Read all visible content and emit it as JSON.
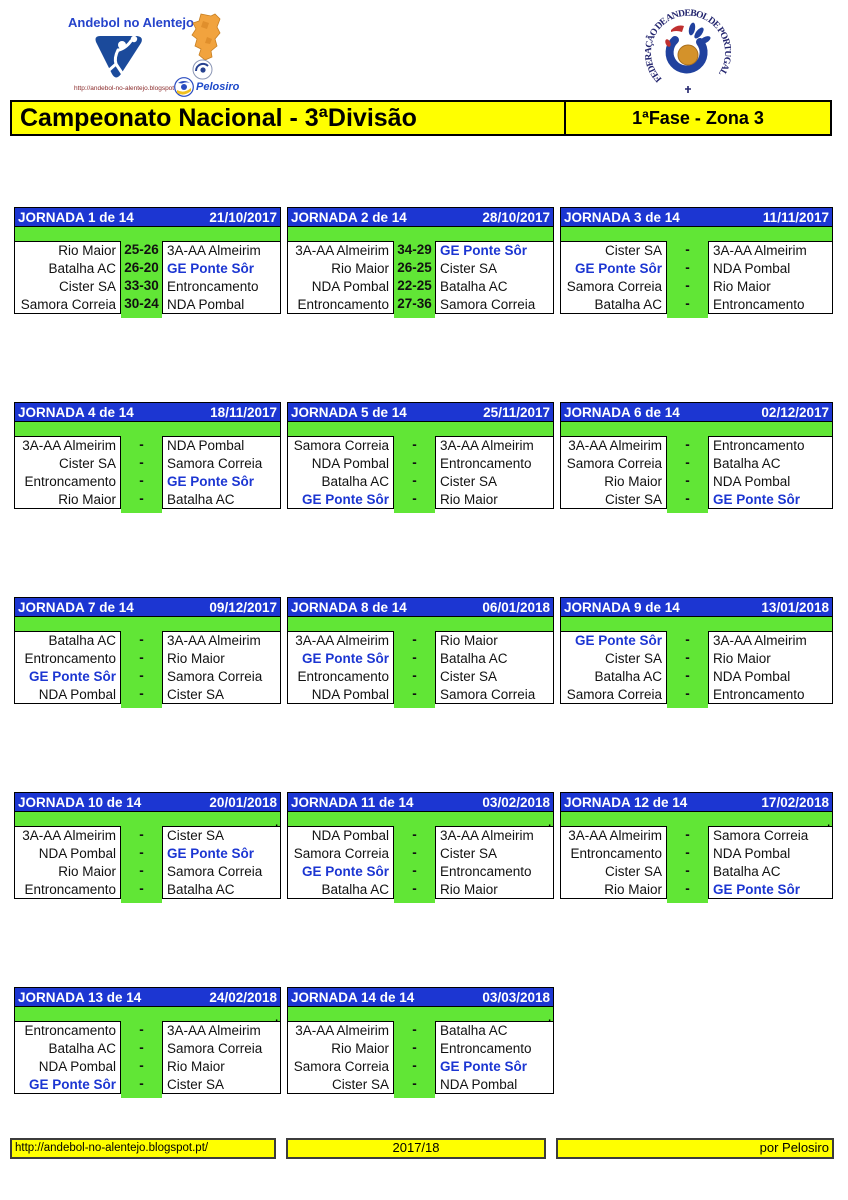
{
  "branding": {
    "site_title": "Andebol no Alentejo",
    "site_url_small": "http://andebol-no-alentejo.blogspot.pt/",
    "pelosiro_label": "Pelosiro",
    "federation_text": "FEDERAÇÃO DE ANDEBOL DE PORTUGAL"
  },
  "title_bar": {
    "left": "Campeonato Nacional - 3ªDivisão",
    "right": "1ªFase - Zona 3"
  },
  "highlight_team": "GE Ponte Sôr",
  "colors": {
    "header_blue": "#1c36d2",
    "bright_green": "#61e636",
    "bar_yellow": "#ffff00",
    "highlight_blue": "#1c36d2"
  },
  "jornadas": [
    {
      "label": "JORNADA 1 de 14",
      "date": "21/10/2017",
      "spacer_note": "",
      "matches": [
        {
          "home": "Rio Maior",
          "score": "25-26",
          "away": "3A-AA Almeirim"
        },
        {
          "home": "Batalha AC",
          "score": "26-20",
          "away": "GE Ponte Sôr"
        },
        {
          "home": "Cister SA",
          "score": "33-30",
          "away": "Entroncamento"
        },
        {
          "home": "Samora Correia",
          "score": "30-24",
          "away": "NDA Pombal"
        }
      ]
    },
    {
      "label": "JORNADA 2 de 14",
      "date": "28/10/2017",
      "spacer_note": "",
      "matches": [
        {
          "home": "3A-AA Almeirim",
          "score": "34-29",
          "away": "GE Ponte Sôr"
        },
        {
          "home": "Rio Maior",
          "score": "26-25",
          "away": "Cister SA"
        },
        {
          "home": "NDA Pombal",
          "score": "22-25",
          "away": "Batalha AC"
        },
        {
          "home": "Entroncamento",
          "score": "27-36",
          "away": "Samora Correia"
        }
      ]
    },
    {
      "label": "JORNADA 3 de 14",
      "date": "11/11/2017",
      "spacer_note": "",
      "matches": [
        {
          "home": "Cister SA",
          "score": "-",
          "away": "3A-AA Almeirim"
        },
        {
          "home": "GE Ponte Sôr",
          "score": "-",
          "away": "NDA Pombal"
        },
        {
          "home": "Samora Correia",
          "score": "-",
          "away": "Rio Maior"
        },
        {
          "home": "Batalha AC",
          "score": "-",
          "away": "Entroncamento"
        }
      ]
    },
    {
      "label": "JORNADA 4 de 14",
      "date": "18/11/2017",
      "spacer_note": "",
      "matches": [
        {
          "home": "3A-AA Almeirim",
          "score": "-",
          "away": "NDA Pombal"
        },
        {
          "home": "Cister SA",
          "score": "-",
          "away": "Samora Correia"
        },
        {
          "home": "Entroncamento",
          "score": "-",
          "away": "GE Ponte Sôr"
        },
        {
          "home": "Rio Maior",
          "score": "-",
          "away": "Batalha AC"
        }
      ]
    },
    {
      "label": "JORNADA 5 de 14",
      "date": "25/11/2017",
      "spacer_note": "",
      "matches": [
        {
          "home": "Samora Correia",
          "score": "-",
          "away": "3A-AA Almeirim"
        },
        {
          "home": "NDA Pombal",
          "score": "-",
          "away": "Entroncamento"
        },
        {
          "home": "Batalha AC",
          "score": "-",
          "away": "Cister SA"
        },
        {
          "home": "GE Ponte Sôr",
          "score": "-",
          "away": "Rio Maior"
        }
      ]
    },
    {
      "label": "JORNADA 6 de 14",
      "date": "02/12/2017",
      "spacer_note": "",
      "matches": [
        {
          "home": "3A-AA Almeirim",
          "score": "-",
          "away": "Entroncamento"
        },
        {
          "home": "Samora Correia",
          "score": "-",
          "away": "Batalha AC"
        },
        {
          "home": "Rio Maior",
          "score": "-",
          "away": "NDA Pombal"
        },
        {
          "home": "Cister SA",
          "score": "-",
          "away": "GE Ponte Sôr"
        }
      ]
    },
    {
      "label": "JORNADA 7 de 14",
      "date": "09/12/2017",
      "spacer_note": "",
      "matches": [
        {
          "home": "Batalha AC",
          "score": "-",
          "away": "3A-AA Almeirim"
        },
        {
          "home": "Entroncamento",
          "score": "-",
          "away": "Rio Maior"
        },
        {
          "home": "GE Ponte Sôr",
          "score": "-",
          "away": "Samora Correia"
        },
        {
          "home": "NDA Pombal",
          "score": "-",
          "away": "Cister SA"
        }
      ]
    },
    {
      "label": "JORNADA 8 de 14",
      "date": "06/01/2018",
      "spacer_note": "",
      "matches": [
        {
          "home": "3A-AA Almeirim",
          "score": "-",
          "away": "Rio Maior"
        },
        {
          "home": "GE Ponte Sôr",
          "score": "-",
          "away": "Batalha AC"
        },
        {
          "home": "Entroncamento",
          "score": "-",
          "away": "Cister SA"
        },
        {
          "home": "NDA Pombal",
          "score": "-",
          "away": "Samora Correia"
        }
      ]
    },
    {
      "label": "JORNADA 9 de 14",
      "date": "13/01/2018",
      "spacer_note": "",
      "matches": [
        {
          "home": "GE Ponte Sôr",
          "score": "-",
          "away": "3A-AA Almeirim"
        },
        {
          "home": "Cister SA",
          "score": "-",
          "away": "Rio Maior"
        },
        {
          "home": "Batalha AC",
          "score": "-",
          "away": "NDA Pombal"
        },
        {
          "home": "Samora Correia",
          "score": "-",
          "away": "Entroncamento"
        }
      ]
    },
    {
      "label": "JORNADA 10 de 14",
      "date": "20/01/2018",
      "spacer_note": ".",
      "matches": [
        {
          "home": "3A-AA Almeirim",
          "score": "-",
          "away": "Cister SA"
        },
        {
          "home": "NDA Pombal",
          "score": "-",
          "away": "GE Ponte Sôr"
        },
        {
          "home": "Rio Maior",
          "score": "-",
          "away": "Samora Correia"
        },
        {
          "home": "Entroncamento",
          "score": "-",
          "away": "Batalha AC"
        }
      ]
    },
    {
      "label": "JORNADA 11 de 14",
      "date": "03/02/2018",
      "spacer_note": ".",
      "matches": [
        {
          "home": "NDA Pombal",
          "score": "-",
          "away": "3A-AA Almeirim"
        },
        {
          "home": "Samora Correia",
          "score": "-",
          "away": "Cister SA"
        },
        {
          "home": "GE Ponte Sôr",
          "score": "-",
          "away": "Entroncamento"
        },
        {
          "home": "Batalha AC",
          "score": "-",
          "away": "Rio Maior"
        }
      ]
    },
    {
      "label": "JORNADA 12 de 14",
      "date": "17/02/2018",
      "spacer_note": ".",
      "matches": [
        {
          "home": "3A-AA Almeirim",
          "score": "-",
          "away": "Samora Correia"
        },
        {
          "home": "Entroncamento",
          "score": "-",
          "away": "NDA Pombal"
        },
        {
          "home": "Cister SA",
          "score": "-",
          "away": "Batalha AC"
        },
        {
          "home": "Rio Maior",
          "score": "-",
          "away": "GE Ponte Sôr"
        }
      ]
    },
    {
      "label": "JORNADA 13 de 14",
      "date": "24/02/2018",
      "spacer_note": ".",
      "matches": [
        {
          "home": "Entroncamento",
          "score": "-",
          "away": "3A-AA Almeirim"
        },
        {
          "home": "Batalha AC",
          "score": "-",
          "away": "Samora Correia"
        },
        {
          "home": "NDA Pombal",
          "score": "-",
          "away": "Rio Maior"
        },
        {
          "home": "GE Ponte Sôr",
          "score": "-",
          "away": "Cister SA"
        }
      ]
    },
    {
      "label": "JORNADA 14 de 14",
      "date": "03/03/2018",
      "spacer_note": ".",
      "matches": [
        {
          "home": "3A-AA Almeirim",
          "score": "-",
          "away": "Batalha AC"
        },
        {
          "home": "Rio Maior",
          "score": "-",
          "away": "Entroncamento"
        },
        {
          "home": "Samora Correia",
          "score": "-",
          "away": "GE Ponte Sôr"
        },
        {
          "home": "Cister SA",
          "score": "-",
          "away": "NDA Pombal"
        }
      ]
    }
  ],
  "footer": {
    "left": "http://andebol-no-alentejo.blogspot.pt/",
    "center": "2017/18",
    "right": "por Pelosiro"
  }
}
